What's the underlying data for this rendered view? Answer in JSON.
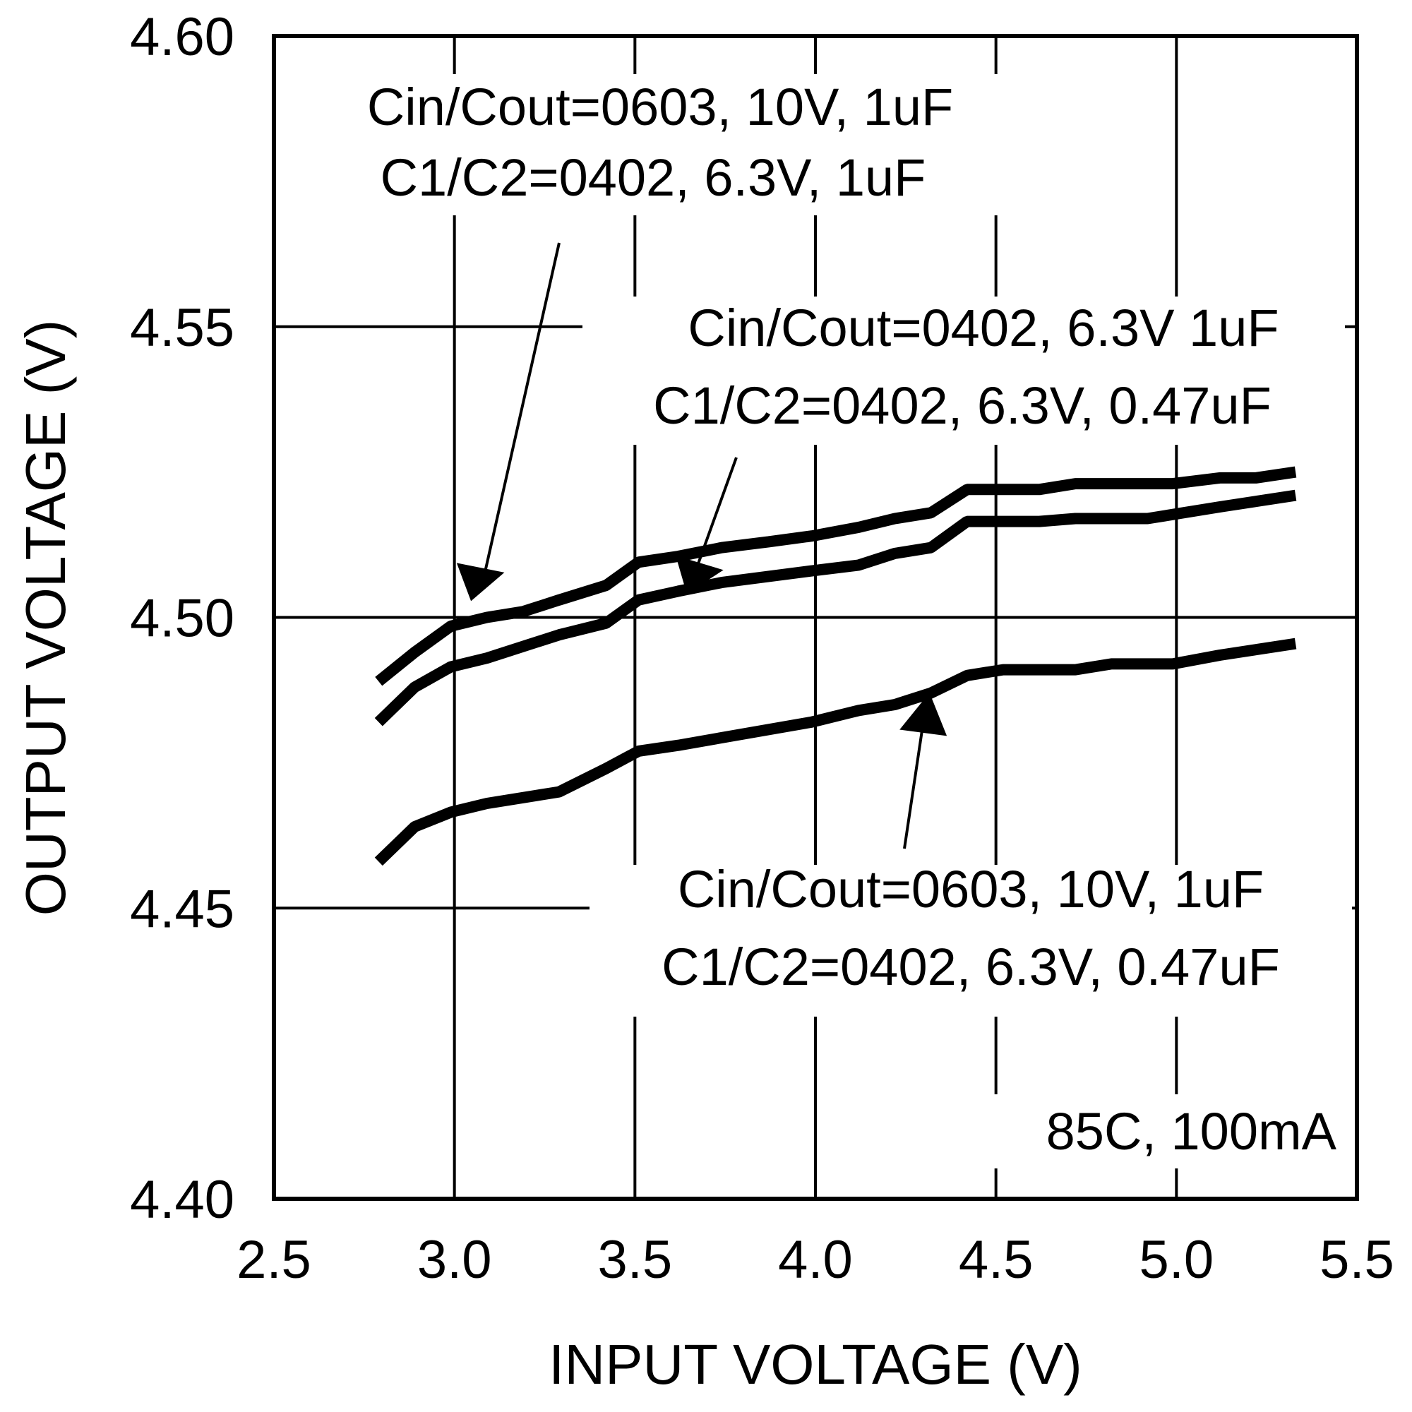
{
  "chart_data": {
    "type": "line",
    "title": "",
    "xlabel": "INPUT VOLTAGE (V)",
    "ylabel": "OUTPUT VOLTAGE (V)",
    "xlim": [
      2.5,
      5.5
    ],
    "ylim": [
      4.4,
      4.6
    ],
    "x_ticks": [
      "2.5",
      "3.0",
      "3.5",
      "4.0",
      "4.5",
      "5.0",
      "5.5"
    ],
    "y_ticks": [
      "4.40",
      "4.45",
      "4.50",
      "4.55",
      "4.60"
    ],
    "grid": true,
    "legend": "none (inline annotations with arrows)",
    "condition_label": "85C, 100mA",
    "series": [
      {
        "name": "Cin/Cout=0603, 10V, 1uF; C1/C2=0402, 6.3V, 1uF",
        "label_lines": [
          "Cin/Cout=0603, 10V, 1uF",
          "C1/C2=0402, 6.3V, 1uF"
        ],
        "x": [
          2.79,
          2.89,
          2.99,
          3.09,
          3.19,
          3.29,
          3.42,
          3.51,
          3.62,
          3.74,
          3.87,
          3.99,
          4.12,
          4.22,
          4.32,
          4.42,
          4.62,
          4.72,
          4.99,
          5.12,
          5.22,
          5.33
        ],
        "y": [
          4.489,
          4.494,
          4.4985,
          4.5,
          4.501,
          4.503,
          4.5055,
          4.5095,
          4.5105,
          4.512,
          4.513,
          4.514,
          4.5155,
          4.517,
          4.518,
          4.522,
          4.522,
          4.523,
          4.523,
          4.524,
          4.524,
          4.525
        ]
      },
      {
        "name": "Cin/Cout=0402, 6.3V 1uF; C1/C2=0402, 6.3V, 0.47uF",
        "label_lines": [
          "Cin/Cout=0402, 6.3V 1uF",
          "C1/C2=0402, 6.3V, 0.47uF"
        ],
        "x": [
          2.79,
          2.89,
          2.99,
          3.09,
          3.29,
          3.42,
          3.51,
          3.62,
          3.74,
          3.99,
          4.12,
          4.22,
          4.32,
          4.42,
          4.62,
          4.72,
          4.92,
          5.12,
          5.33
        ],
        "y": [
          4.482,
          4.488,
          4.4915,
          4.493,
          4.497,
          4.499,
          4.503,
          4.5045,
          4.506,
          4.508,
          4.509,
          4.511,
          4.512,
          4.5165,
          4.5165,
          4.517,
          4.517,
          4.519,
          4.521
        ]
      },
      {
        "name": "Cin/Cout=0603, 10V, 1uF; C1/C2=0402, 6.3V, 0.47uF",
        "label_lines": [
          "Cin/Cout=0603, 10V, 1uF",
          "C1/C2=0402, 6.3V, 0.47uF"
        ],
        "x": [
          2.79,
          2.89,
          2.99,
          3.09,
          3.29,
          3.42,
          3.51,
          3.62,
          3.99,
          4.12,
          4.22,
          4.32,
          4.42,
          4.52,
          4.72,
          4.82,
          4.99,
          5.12,
          5.33
        ],
        "y": [
          4.458,
          4.464,
          4.4665,
          4.468,
          4.47,
          4.474,
          4.477,
          4.478,
          4.482,
          4.484,
          4.485,
          4.487,
          4.49,
          4.491,
          4.491,
          4.492,
          4.492,
          4.4935,
          4.4955
        ]
      }
    ],
    "colors": {
      "line": "#000000",
      "grid": "#000000",
      "background": "#ffffff"
    }
  }
}
